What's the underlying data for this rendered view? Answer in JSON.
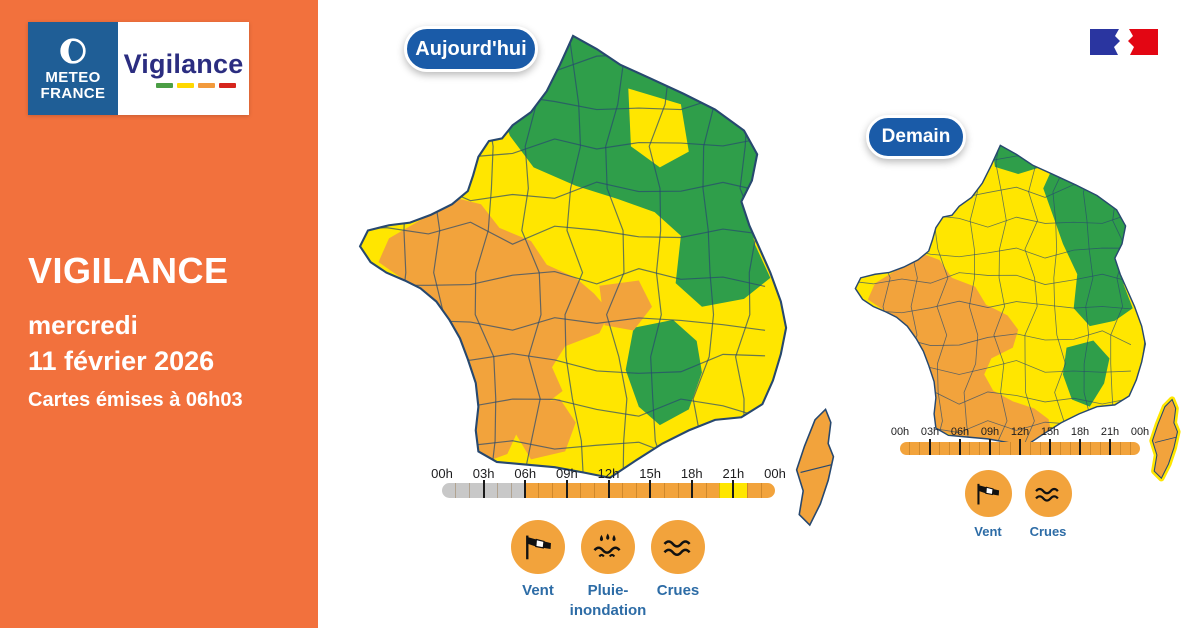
{
  "colors": {
    "sidebar_bg": "#f2713d",
    "alert_green": "#2f9e4a",
    "alert_yellow": "#ffe600",
    "alert_orange": "#f2a33c",
    "timeline_gray": "#c8c8c8",
    "map_border": "#27486f",
    "badge_blue": "#1a5ba8",
    "label_blue": "#2d6ca6",
    "logo_navy": "#2b2d80",
    "mf_blue": "#1f5e96",
    "flag_blue": "#2a35a0",
    "flag_red": "#e30613"
  },
  "brand": {
    "meteo_line1": "METEO",
    "meteo_line2": "FRANCE",
    "product": "Vigilance",
    "dashes": [
      "#4b9e45",
      "#ffd800",
      "#f29a3c",
      "#d6251d"
    ]
  },
  "sidebar": {
    "title": "VIGILANCE",
    "weekday": "mercredi",
    "date_line": "11 février 2026",
    "issued_line": "Cartes émises à 06h03"
  },
  "maps": [
    {
      "badge": "Aujourd'hui",
      "regions": {
        "base": "yellow",
        "north_ne": "green",
        "notch": "yellow",
        "southcenter": "green",
        "west": "orange",
        "center_patch": "orange",
        "south_patch": "orange",
        "corsica": "orange"
      },
      "timeline": {
        "ticks": [
          "00h",
          "03h",
          "06h",
          "09h",
          "12h",
          "15h",
          "18h",
          "21h",
          "00h"
        ],
        "segments": [
          "none",
          "none",
          "none",
          "none",
          "none",
          "none",
          "orange",
          "orange",
          "orange",
          "orange",
          "orange",
          "orange",
          "orange",
          "orange",
          "orange",
          "orange",
          "orange",
          "orange",
          "orange",
          "orange",
          "yellow",
          "yellow",
          "orange",
          "orange"
        ]
      },
      "hazards": [
        {
          "line1": "Vent",
          "icon": "windsock"
        },
        {
          "line1": "Pluie-",
          "line2": "inondation",
          "icon": "rain-flood"
        },
        {
          "line1": "Crues",
          "icon": "waves"
        }
      ]
    },
    {
      "badge": "Demain",
      "regions": {
        "base": "yellow",
        "north_small": "green",
        "northeast": "green",
        "southcenter": "green",
        "west": "orange",
        "corsica": "orange"
      },
      "timeline": {
        "ticks": [
          "00h",
          "03h",
          "06h",
          "09h",
          "12h",
          "15h",
          "18h",
          "21h",
          "00h"
        ],
        "segments": [
          "orange",
          "orange",
          "orange",
          "orange",
          "orange",
          "orange",
          "orange",
          "orange",
          "orange",
          "orange",
          "orange",
          "orange",
          "orange",
          "orange",
          "orange",
          "orange",
          "orange",
          "orange",
          "orange",
          "orange",
          "orange",
          "orange",
          "orange",
          "orange"
        ]
      },
      "hazards": [
        {
          "line1": "Vent",
          "icon": "windsock"
        },
        {
          "line1": "Crues",
          "icon": "waves"
        }
      ]
    }
  ]
}
